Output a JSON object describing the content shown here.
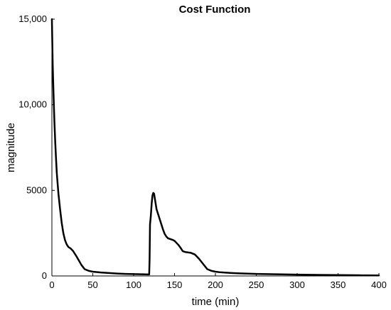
{
  "chart_data": {
    "type": "line",
    "title": "Cost Function",
    "xlabel": "time (min)",
    "ylabel": "magnitude",
    "xlim": [
      0,
      400
    ],
    "ylim": [
      0,
      15000
    ],
    "grid": false,
    "x_ticks": [
      0,
      50,
      100,
      150,
      200,
      250,
      300,
      350,
      400
    ],
    "x_tick_labels": [
      "0",
      "50",
      "100",
      "150",
      "200",
      "250",
      "300",
      "350",
      "400"
    ],
    "y_ticks": [
      0,
      5000,
      10000,
      15000
    ],
    "y_tick_labels": [
      "0",
      "5000",
      "10,000",
      "15,000"
    ],
    "color": "#000000",
    "series": [
      {
        "x": [
          0,
          1,
          2,
          3,
          4,
          5,
          6,
          8,
          10,
          12,
          14,
          16,
          18,
          20,
          23,
          26,
          30,
          33,
          36,
          40,
          45,
          50,
          60,
          70,
          80,
          90,
          100,
          110,
          119,
          119.5,
          120,
          121,
          122,
          123,
          124,
          125,
          126,
          127,
          128,
          130,
          132,
          134,
          136,
          138,
          140,
          142,
          145,
          148,
          150,
          152,
          155,
          158,
          160,
          163,
          166,
          170,
          175,
          180,
          185,
          190,
          195,
          200,
          205,
          210,
          220,
          230,
          250,
          275,
          300,
          325,
          350,
          375,
          400
        ],
        "y": [
          15000,
          12300,
          10600,
          9100,
          7900,
          6900,
          6000,
          4800,
          3900,
          3100,
          2500,
          2100,
          1850,
          1700,
          1600,
          1450,
          1150,
          900,
          650,
          400,
          300,
          250,
          200,
          170,
          140,
          120,
          110,
          100,
          90,
          1000,
          3000,
          3500,
          4200,
          4700,
          4850,
          4800,
          4500,
          4200,
          3900,
          3600,
          3300,
          3000,
          2700,
          2450,
          2300,
          2200,
          2150,
          2100,
          2050,
          1950,
          1800,
          1600,
          1450,
          1400,
          1380,
          1350,
          1250,
          1000,
          700,
          400,
          300,
          250,
          220,
          200,
          170,
          150,
          120,
          100,
          80,
          60,
          50,
          40,
          30
        ]
      }
    ]
  }
}
